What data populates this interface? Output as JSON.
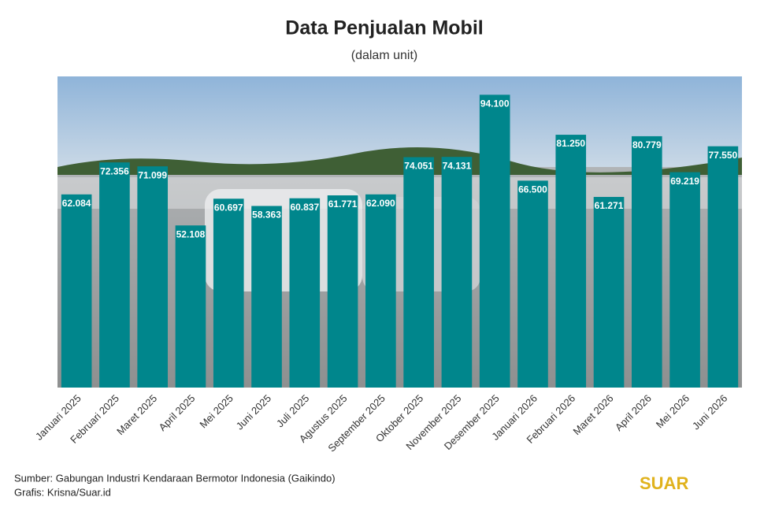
{
  "chart_data": {
    "type": "bar",
    "title": "Data Penjualan Mobil",
    "subtitle": "(dalam unit)",
    "categories": [
      "Januari 2025",
      "Februari 2025",
      "Maret 2025",
      "April 2025",
      "Mei 2025",
      "Juni 2025",
      "Juli 2025",
      "Agustus 2025",
      "September 2025",
      "Oktober 2025",
      "November 2025",
      "Desember 2025",
      "Januari 2026",
      "Februari 2026",
      "Maret 2026",
      "April 2026",
      "Mei 2026",
      "Juni 2026"
    ],
    "values": [
      62084,
      72356,
      71099,
      52108,
      60697,
      58363,
      60837,
      61771,
      62090,
      74051,
      74131,
      94100,
      66500,
      81250,
      61271,
      80779,
      69219,
      77550
    ],
    "value_labels": [
      "62.084",
      "72.356",
      "71.099",
      "52.108",
      "60.697",
      "58.363",
      "60.837",
      "61.771",
      "62.090",
      "74.051",
      "74.131",
      "94.100",
      "66.500",
      "81.250",
      "61.271",
      "80.779",
      "69.219",
      "77.550"
    ],
    "color": "#00868c",
    "ylim": [
      0,
      100000
    ]
  },
  "footer": {
    "source": "Sumber: Gabungan Industri Kendaraan Bermotor Indonesia (Gaikindo)",
    "credit": "Grafis: Krisna/Suar.id",
    "logo": "SUAR"
  }
}
